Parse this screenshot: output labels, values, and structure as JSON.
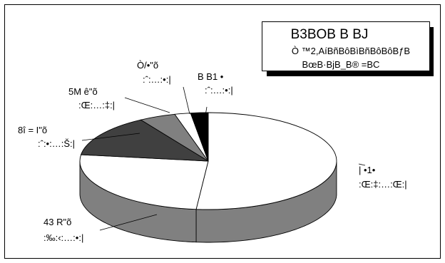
{
  "chart_data": {
    "type": "pie",
    "title": "B3BOB B BJ",
    "subtitle_lines": [
      "Ò ™2,AíBñBôBìBñBôBôBƒB",
      "BœB·BjB_B® =BC"
    ],
    "slices": [
      {
        "name": "| •1•",
        "value_label": ":Œ:‡:…:Œ:|",
        "value": 51.5,
        "color": "#ffffff"
      },
      {
        "name": "43 R\"õ",
        "value_label": ":‰:‹:…:•:|",
        "value": 25.6,
        "color": "#ffffff"
      },
      {
        "name": "8î = I\"õ",
        "value_label": ":ˆ:•:…:Š:|",
        "value": 14.1,
        "color": "#404040"
      },
      {
        "name": "5M ê\"õ",
        "value_label": ":Œ:…:‡:|",
        "value": 4.6,
        "color": "#808080"
      },
      {
        "name": "Ò/•\"õ",
        "value_label": ":ˆ:…:•:|",
        "value": 2.0,
        "color": "#ffffff"
      },
      {
        "name": "B B1 •",
        "value_label": ":ˆ:…:•:|",
        "value": 2.2,
        "color": "#000000"
      }
    ],
    "side_color": "#808080",
    "legend": "none"
  }
}
